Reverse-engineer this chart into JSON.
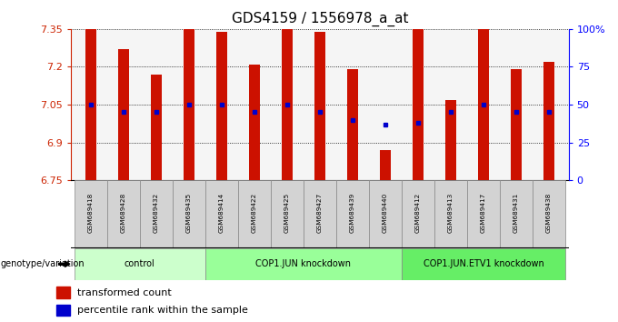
{
  "title": "GDS4159 / 1556978_a_at",
  "samples": [
    "GSM689418",
    "GSM689428",
    "GSM689432",
    "GSM689435",
    "GSM689414",
    "GSM689422",
    "GSM689425",
    "GSM689427",
    "GSM689439",
    "GSM689440",
    "GSM689412",
    "GSM689413",
    "GSM689417",
    "GSM689431",
    "GSM689438"
  ],
  "transformed_count": [
    7.35,
    7.27,
    7.17,
    7.35,
    7.34,
    7.21,
    7.35,
    7.34,
    7.19,
    6.87,
    7.35,
    7.07,
    7.35,
    7.19,
    7.22
  ],
  "percentile_rank": [
    50,
    45,
    45,
    50,
    50,
    45,
    50,
    45,
    40,
    37,
    38,
    45,
    50,
    45,
    45
  ],
  "groups": [
    {
      "label": "control",
      "start": 0,
      "end": 4,
      "color": "#ccffcc"
    },
    {
      "label": "COP1.JUN knockdown",
      "start": 4,
      "end": 10,
      "color": "#99ff99"
    },
    {
      "label": "COP1.JUN.ETV1 knockdown",
      "start": 10,
      "end": 15,
      "color": "#66ee66"
    }
  ],
  "ylim": [
    6.75,
    7.35
  ],
  "yticks": [
    6.75,
    6.9,
    7.05,
    7.2,
    7.35
  ],
  "bar_color": "#cc1100",
  "dot_color": "#0000cc",
  "right_yticks": [
    0,
    25,
    50,
    75,
    100
  ],
  "right_ytick_labels": [
    "0",
    "25",
    "50",
    "75",
    "100%"
  ],
  "figsize": [
    6.8,
    3.54
  ],
  "dpi": 100
}
